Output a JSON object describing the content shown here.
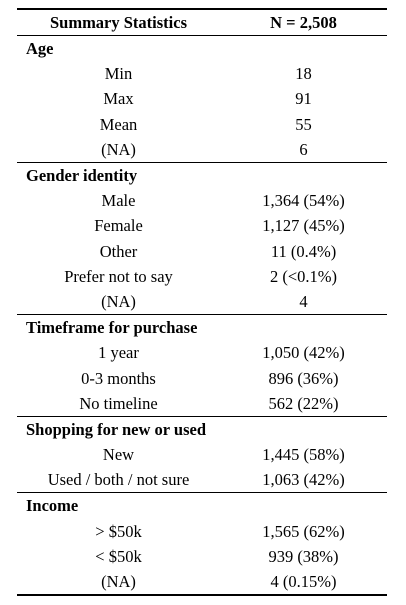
{
  "table": {
    "header": {
      "label": "Summary Statistics",
      "n": "N = 2,508"
    },
    "sections": [
      {
        "title": "Age",
        "rows": [
          {
            "label": "Min",
            "value": "18"
          },
          {
            "label": "Max",
            "value": "91"
          },
          {
            "label": "Mean",
            "value": "55"
          },
          {
            "label": "(NA)",
            "value": "6"
          }
        ]
      },
      {
        "title": "Gender identity",
        "rows": [
          {
            "label": "Male",
            "value": "1,364 (54%)"
          },
          {
            "label": "Female",
            "value": "1,127 (45%)"
          },
          {
            "label": "Other",
            "value": "11 (0.4%)"
          },
          {
            "label": "Prefer not to say",
            "value": "2 (<0.1%)"
          },
          {
            "label": "(NA)",
            "value": "4"
          }
        ]
      },
      {
        "title": "Timeframe for purchase",
        "rows": [
          {
            "label": "1 year",
            "value": "1,050 (42%)"
          },
          {
            "label": "0-3 months",
            "value": "896 (36%)"
          },
          {
            "label": "No timeline",
            "value": "562 (22%)"
          }
        ]
      },
      {
        "title": "Shopping for new or used",
        "rows": [
          {
            "label": "New",
            "value": "1,445 (58%)"
          },
          {
            "label": "Used / both / not sure",
            "value": "1,063 (42%)"
          }
        ]
      },
      {
        "title": "Income",
        "rows": [
          {
            "label": "> $50k",
            "value": "1,565 (62%)"
          },
          {
            "label": "< $50k",
            "value": "939 (38%)"
          },
          {
            "label": "(NA)",
            "value": "4 (0.15%)"
          }
        ]
      }
    ]
  }
}
